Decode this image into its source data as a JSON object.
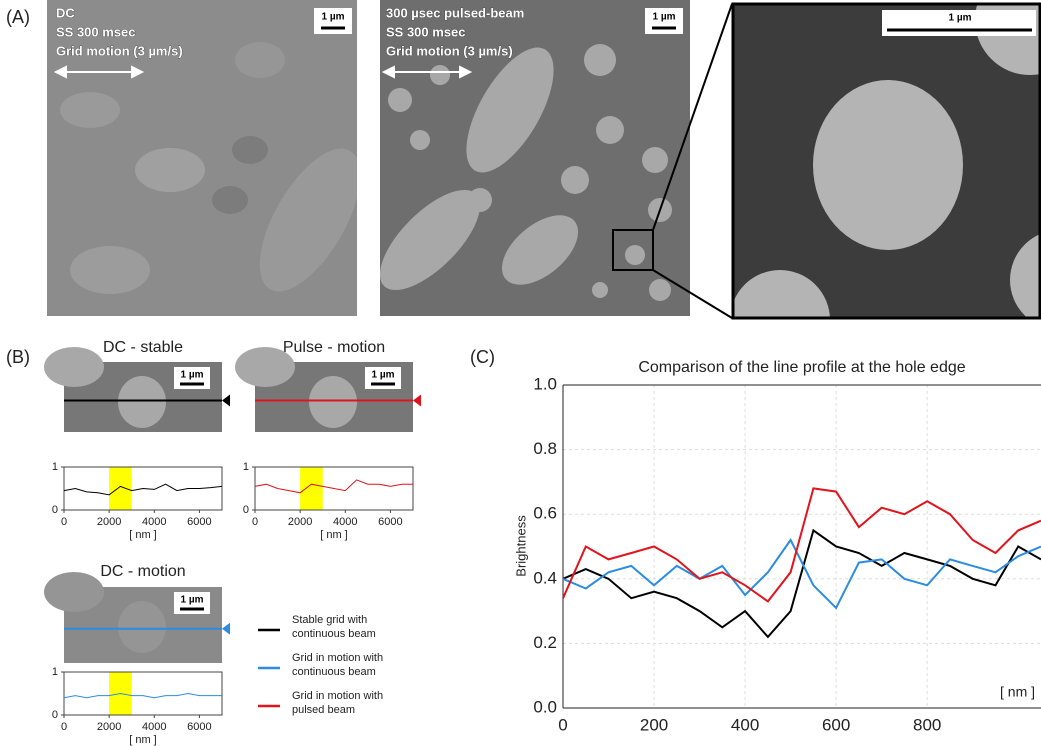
{
  "figure": {
    "panel_labels": [
      "(A)",
      "(B)",
      "(C)"
    ],
    "micrographs": [
      {
        "lines": [
          "DC",
          "SS 300 msec",
          "Grid motion (3 µm/s)"
        ],
        "scale_bar": "1 µm"
      },
      {
        "lines": [
          "300 µsec pulsed-beam",
          "SS 300 msec",
          "Grid motion (3 µm/s)"
        ],
        "scale_bar": "1 µm"
      },
      {
        "scale_bar": "1 µm"
      }
    ]
  },
  "chart_data": [
    {
      "type": "line",
      "title": "Comparison of the line profile at the hole edge",
      "ylabel": "Brightness",
      "xunit": "[ nm ]",
      "x": [
        0,
        50,
        100,
        150,
        200,
        250,
        300,
        350,
        400,
        450,
        500,
        550,
        600,
        650,
        700,
        750,
        800,
        850,
        900,
        950,
        1000,
        1050
      ],
      "series": [
        {
          "name": "Stable grid with continuous beam",
          "color": "#000000",
          "values": [
            0.4,
            0.43,
            0.4,
            0.34,
            0.36,
            0.34,
            0.3,
            0.25,
            0.3,
            0.22,
            0.3,
            0.55,
            0.5,
            0.48,
            0.44,
            0.48,
            0.46,
            0.44,
            0.4,
            0.38,
            0.5,
            0.46
          ]
        },
        {
          "name": "Grid in motion with continuous beam",
          "color": "#2b8ce0",
          "values": [
            0.4,
            0.37,
            0.42,
            0.44,
            0.38,
            0.44,
            0.4,
            0.44,
            0.35,
            0.42,
            0.52,
            0.38,
            0.31,
            0.45,
            0.46,
            0.4,
            0.38,
            0.46,
            0.44,
            0.42,
            0.47,
            0.5
          ]
        },
        {
          "name": "Grid in motion with pulsed beam",
          "color": "#e0141c",
          "values": [
            0.34,
            0.5,
            0.46,
            0.48,
            0.5,
            0.46,
            0.4,
            0.42,
            0.38,
            0.33,
            0.42,
            0.68,
            0.67,
            0.56,
            0.62,
            0.6,
            0.64,
            0.6,
            0.52,
            0.48,
            0.55,
            0.58
          ]
        }
      ],
      "xlim": [
        0,
        1050
      ],
      "xticks": [
        0,
        200,
        400,
        600,
        800
      ],
      "ylim": [
        0,
        1
      ],
      "yticks": [
        {
          "value": 0,
          "label": "0.0"
        },
        0.2,
        0.4,
        0.6,
        0.8,
        {
          "value": 1,
          "label": "1.0"
        }
      ],
      "grid": true
    },
    {
      "type": "line",
      "title": "DC - stable",
      "scale_bar": "1 µm",
      "xunit": "[ nm ]",
      "color": "#000000",
      "x": [
        0,
        500,
        1000,
        1500,
        2000,
        2500,
        3000,
        3500,
        4000,
        4500,
        5000,
        5500,
        6000,
        6500,
        7000
      ],
      "values": [
        0.45,
        0.5,
        0.42,
        0.4,
        0.35,
        0.55,
        0.45,
        0.5,
        0.48,
        0.6,
        0.45,
        0.5,
        0.5,
        0.52,
        0.55
      ],
      "highlight": [
        2000,
        3000
      ],
      "highlight_color": "#ffff00",
      "xlim": [
        0,
        7000
      ],
      "xticks": [
        0,
        2000,
        4000,
        6000
      ],
      "ylim": [
        0,
        1
      ],
      "yticks": [
        0,
        1
      ]
    },
    {
      "type": "line",
      "title": "Pulse - motion",
      "scale_bar": "1 µm",
      "xunit": "[ nm ]",
      "color": "#e0141c",
      "x": [
        0,
        500,
        1000,
        1500,
        2000,
        2500,
        3000,
        3500,
        4000,
        4500,
        5000,
        5500,
        6000,
        6500,
        7000
      ],
      "values": [
        0.55,
        0.6,
        0.5,
        0.45,
        0.4,
        0.6,
        0.55,
        0.5,
        0.45,
        0.7,
        0.6,
        0.6,
        0.55,
        0.6,
        0.6
      ],
      "highlight": [
        2000,
        3000
      ],
      "highlight_color": "#ffff00",
      "xlim": [
        0,
        7000
      ],
      "xticks": [
        0,
        2000,
        4000,
        6000
      ],
      "ylim": [
        0,
        1
      ],
      "yticks": [
        0,
        1
      ]
    },
    {
      "type": "line",
      "title": "DC - motion",
      "scale_bar": "1 µm",
      "xunit": "[ nm ]",
      "color": "#2b8ce0",
      "x": [
        0,
        500,
        1000,
        1500,
        2000,
        2500,
        3000,
        3500,
        4000,
        4500,
        5000,
        5500,
        6000,
        6500,
        7000
      ],
      "values": [
        0.4,
        0.45,
        0.4,
        0.45,
        0.45,
        0.5,
        0.45,
        0.45,
        0.4,
        0.45,
        0.45,
        0.5,
        0.45,
        0.45,
        0.45
      ],
      "highlight": [
        2000,
        3000
      ],
      "highlight_color": "#ffff00",
      "xlim": [
        0,
        7000
      ],
      "xticks": [
        0,
        2000,
        4000,
        6000
      ],
      "ylim": [
        0,
        1
      ],
      "yticks": [
        0,
        1
      ]
    }
  ]
}
